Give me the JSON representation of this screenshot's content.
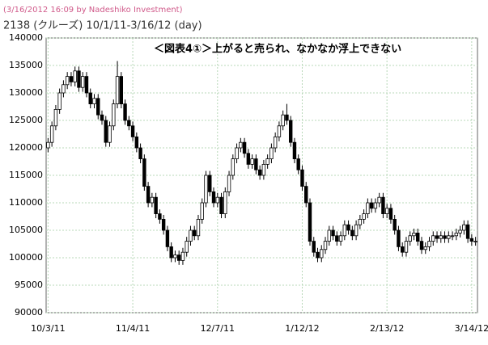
{
  "chart_data": {
    "type": "candlestick",
    "source_note": "(3/16/2012 16:09 by Nadeshiko Investment)",
    "title": "2138 (クルーズ) 10/1/11-3/16/12 (day)",
    "annotation": "＜図表4①＞上がると売られ、なかなか浮上できない",
    "categories": [
      "10/3/11",
      null,
      null,
      null,
      null,
      null,
      null,
      null,
      null,
      null,
      null,
      null,
      null,
      null,
      null,
      null,
      null,
      null,
      null,
      null,
      null,
      null,
      "11/4/11",
      null,
      null,
      null,
      null,
      null,
      null,
      null,
      null,
      null,
      null,
      null,
      null,
      null,
      null,
      null,
      null,
      null,
      null,
      null,
      null,
      null,
      "12/7/11",
      null,
      null,
      null,
      null,
      null,
      null,
      null,
      null,
      null,
      null,
      null,
      null,
      null,
      null,
      null,
      null,
      null,
      null,
      null,
      null,
      null,
      "1/12/12",
      null,
      null,
      null,
      null,
      null,
      null,
      null,
      null,
      null,
      null,
      null,
      null,
      null,
      null,
      null,
      null,
      null,
      null,
      null,
      null,
      null,
      "2/13/12",
      null,
      null,
      null,
      null,
      null,
      null,
      null,
      null,
      null,
      null,
      null,
      null,
      null,
      null,
      null,
      null,
      null,
      null,
      null,
      null,
      null,
      "3/14/12",
      null
    ],
    "open": [
      120000,
      121000,
      124000,
      127000,
      130000,
      131500,
      133000,
      132000,
      134000,
      131000,
      133000,
      130000,
      128000,
      129000,
      126000,
      125000,
      121000,
      124000,
      128000,
      133000,
      128000,
      125000,
      124000,
      122000,
      120000,
      118000,
      113000,
      110000,
      111000,
      108000,
      107000,
      105000,
      102000,
      100000,
      100500,
      99500,
      101000,
      103000,
      105000,
      104000,
      107000,
      110000,
      115000,
      112000,
      110000,
      111000,
      108000,
      112000,
      115000,
      118000,
      120000,
      121000,
      119000,
      117000,
      118000,
      116000,
      115000,
      117000,
      118000,
      120000,
      122000,
      124000,
      126000,
      125000,
      121000,
      118000,
      116000,
      113000,
      110000,
      103000,
      101000,
      100000,
      101500,
      103000,
      105000,
      104000,
      103000,
      104000,
      106000,
      105000,
      104000,
      106000,
      107000,
      108000,
      110000,
      109000,
      110000,
      111000,
      108000,
      109000,
      107000,
      105000,
      102000,
      101000,
      103000,
      104000,
      104500,
      103000,
      101500,
      102000,
      103000,
      104000,
      103500,
      104000,
      103500,
      104000,
      104000,
      104500,
      105000,
      106000,
      103500,
      103000
    ],
    "high": [
      121800,
      124800,
      127800,
      130800,
      132300,
      133800,
      133800,
      134800,
      134800,
      133800,
      133800,
      130800,
      129800,
      129800,
      126800,
      125800,
      124800,
      128800,
      135800,
      133800,
      128800,
      125800,
      124800,
      122800,
      120800,
      118800,
      113800,
      111800,
      111800,
      108800,
      107800,
      105800,
      102800,
      101300,
      101300,
      101800,
      103800,
      105800,
      105800,
      107800,
      110800,
      115800,
      115800,
      112800,
      111800,
      111800,
      112800,
      115800,
      118800,
      120800,
      121800,
      121800,
      119800,
      118800,
      118800,
      116800,
      117800,
      118800,
      120800,
      122800,
      124800,
      126800,
      128000,
      125800,
      121800,
      118800,
      116800,
      113800,
      110800,
      103800,
      101800,
      102300,
      103800,
      105800,
      105800,
      104800,
      104800,
      106800,
      106800,
      105800,
      106800,
      107800,
      108800,
      110800,
      110800,
      110800,
      111800,
      111800,
      109800,
      109800,
      107800,
      105800,
      102800,
      103800,
      104800,
      105300,
      105300,
      103800,
      102800,
      103800,
      104800,
      104800,
      104800,
      104800,
      104800,
      104800,
      105300,
      105800,
      106800,
      106800,
      104300,
      103800
    ],
    "low": [
      119200,
      120200,
      123200,
      126200,
      129200,
      130700,
      131200,
      131200,
      130200,
      130200,
      129200,
      127200,
      127200,
      125200,
      124200,
      120200,
      120200,
      123200,
      127200,
      127200,
      124200,
      123200,
      121200,
      119200,
      117200,
      112200,
      109200,
      109200,
      107200,
      106200,
      104200,
      101200,
      99200,
      99200,
      98700,
      98700,
      100200,
      102200,
      103200,
      103200,
      106200,
      109200,
      111200,
      109200,
      109200,
      107200,
      107200,
      111200,
      114200,
      117200,
      119200,
      118200,
      116200,
      116200,
      115200,
      114200,
      114200,
      116200,
      117200,
      119200,
      121200,
      123200,
      124200,
      120200,
      117200,
      115200,
      112200,
      109200,
      102200,
      100200,
      99200,
      99200,
      100700,
      102200,
      103200,
      102200,
      102200,
      103200,
      104200,
      103200,
      103200,
      105200,
      106200,
      107200,
      108200,
      108200,
      109200,
      107200,
      107200,
      106200,
      104200,
      101200,
      100200,
      100200,
      102200,
      103200,
      102200,
      100700,
      100700,
      101200,
      102200,
      102700,
      102700,
      102700,
      102700,
      103200,
      103200,
      103700,
      104200,
      102700,
      102200,
      102200
    ],
    "close": [
      121000,
      124000,
      127000,
      130000,
      131500,
      133000,
      132000,
      134000,
      131000,
      133000,
      130000,
      128000,
      129000,
      126000,
      125000,
      121000,
      124000,
      128000,
      133000,
      128000,
      125000,
      124000,
      122000,
      120000,
      118000,
      113000,
      110000,
      111000,
      108000,
      107000,
      105000,
      102000,
      100000,
      100500,
      99500,
      101000,
      103000,
      105000,
      104000,
      107000,
      110000,
      115000,
      112000,
      110000,
      111000,
      108000,
      112000,
      115000,
      118000,
      120000,
      121000,
      119000,
      117000,
      118000,
      116000,
      115000,
      117000,
      118000,
      120000,
      122000,
      124000,
      126000,
      125000,
      121000,
      118000,
      116000,
      113000,
      110000,
      103000,
      101000,
      100000,
      101500,
      103000,
      105000,
      104000,
      103000,
      104000,
      106000,
      105000,
      104000,
      106000,
      107000,
      108000,
      110000,
      109000,
      110000,
      111000,
      108000,
      109000,
      107000,
      105000,
      102000,
      101000,
      103000,
      104000,
      104500,
      103000,
      101500,
      102000,
      103000,
      104000,
      103500,
      104000,
      103500,
      104000,
      104000,
      104500,
      105000,
      106000,
      103500,
      103000,
      103000
    ],
    "up_color": "#ffffff",
    "down_color": "#000000",
    "ylim": [
      90000,
      140000
    ],
    "yticks": [
      90000,
      95000,
      100000,
      105000,
      110000,
      115000,
      120000,
      125000,
      130000,
      135000,
      140000
    ],
    "grid": true
  }
}
